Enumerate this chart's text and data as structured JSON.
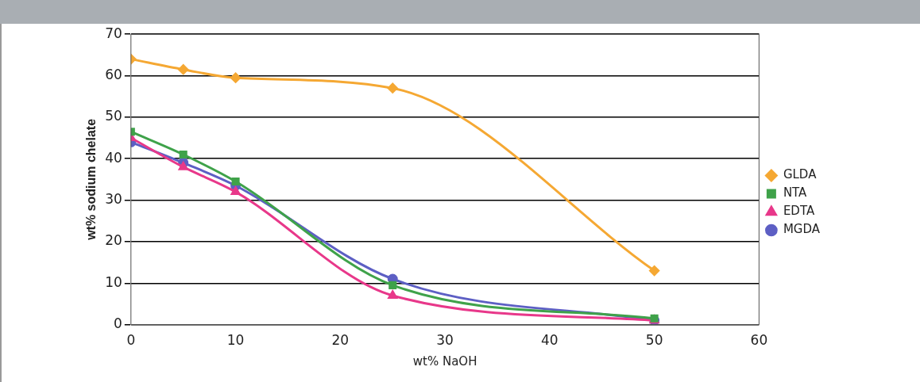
{
  "chart_data": {
    "type": "line",
    "xlabel": "wt% NaOH",
    "ylabel": "wt% sodium chelate",
    "x": [
      0,
      5,
      10,
      25,
      50
    ],
    "series": [
      {
        "name": "GLDA",
        "color": "#f5a833",
        "marker": "diamond",
        "values": [
          64,
          61.5,
          59.5,
          57,
          13
        ]
      },
      {
        "name": "NTA",
        "color": "#3fa24a",
        "marker": "square",
        "values": [
          46.5,
          41,
          34.5,
          9.5,
          1.5
        ]
      },
      {
        "name": "EDTA",
        "color": "#e8388a",
        "marker": "triangle",
        "values": [
          45,
          38,
          32,
          7,
          1
        ]
      },
      {
        "name": "MGDA",
        "color": "#5d5fc4",
        "marker": "circle",
        "values": [
          44,
          39,
          33.5,
          11,
          1
        ]
      }
    ],
    "xlim": [
      0,
      60
    ],
    "xticks": [
      0,
      10,
      20,
      30,
      40,
      50,
      60
    ],
    "ylim": [
      0,
      70
    ],
    "yticks": [
      0,
      10,
      20,
      30,
      40,
      50,
      60,
      70
    ],
    "grid": "y",
    "legend": "right"
  }
}
